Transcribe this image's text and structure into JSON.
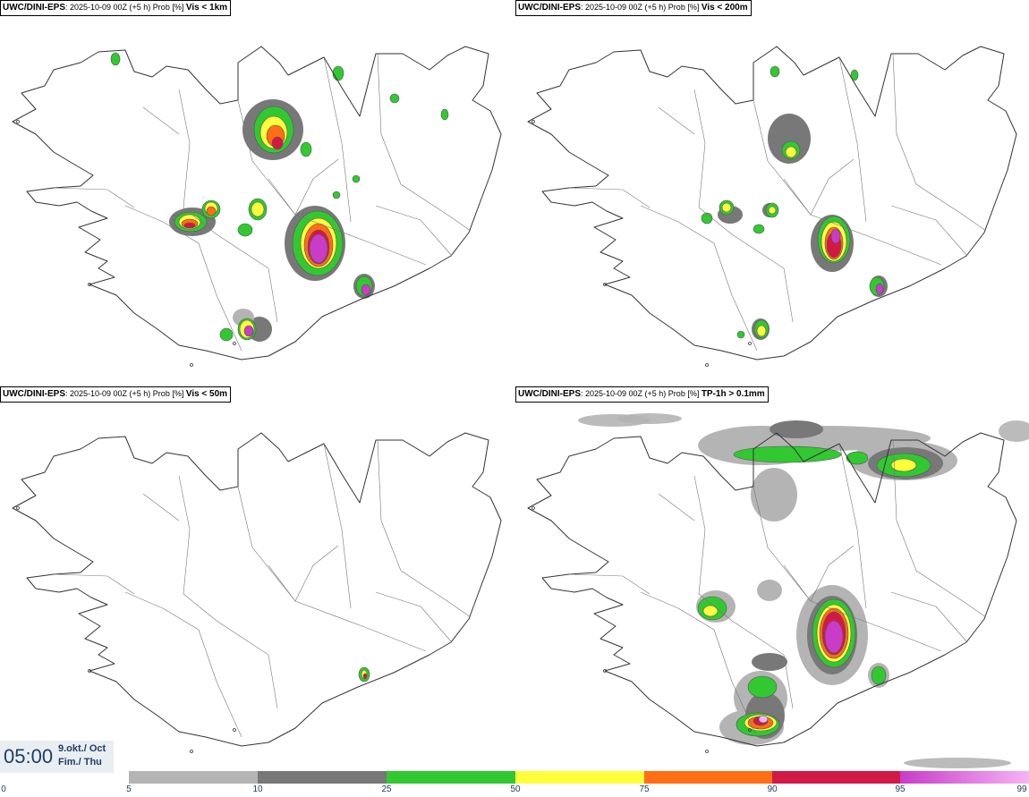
{
  "panels": [
    {
      "id": "vis1km",
      "source": "UWC/DINI-EPS",
      "info": ": 2025-10-09 00Z (+5 h) Prob [%] ",
      "variable": "Vis < 1km"
    },
    {
      "id": "vis200m",
      "source": "UWC/DINI-EPS",
      "info": ": 2025-10-09 00Z (+5 h) Prob [%] ",
      "variable": "Vis < 200m"
    },
    {
      "id": "vis50m",
      "source": "UWC/DINI-EPS",
      "info": ": 2025-10-09 00Z (+5 h) Prob [%] ",
      "variable": "Vis < 50m"
    },
    {
      "id": "tp1h",
      "source": "UWC/DINI-EPS",
      "info": ": 2025-10-09 00Z (+5 h) Prob [%] ",
      "variable": "TP-1h > 0.1mm"
    }
  ],
  "valid_time": {
    "time": "05:00",
    "date_line1": "9.okt./ Oct",
    "date_line2": "Fim./ Thu"
  },
  "legend": {
    "ticks": [
      "0",
      "5",
      "10",
      "25",
      "50",
      "75",
      "90",
      "95",
      "99"
    ],
    "colors": {
      "p5": "#b4b4b4",
      "p10": "#787878",
      "p25": "#32c832",
      "p50": "#ffff3c",
      "p75": "#ff6e14",
      "p90": "#d21946",
      "p95_start": "#c83cc8",
      "p95_end": "#f5b4f5"
    }
  }
}
